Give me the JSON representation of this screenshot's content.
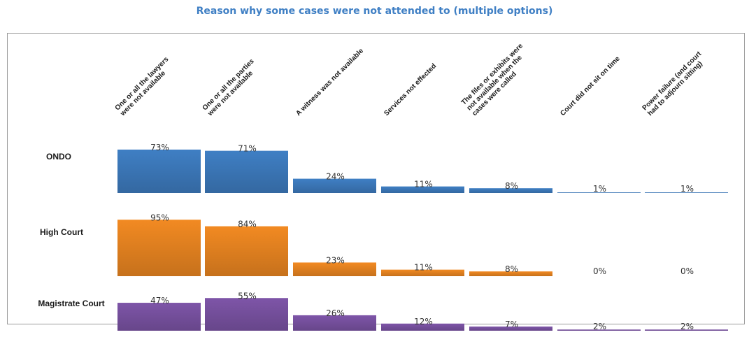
{
  "chart_data": {
    "type": "bar",
    "title": "Reason why some cases were not attended to (multiple options)",
    "categories": [
      "One or all the lawyers were not available",
      "One or all the parties were not available",
      "A witness was not available",
      "Services not effected",
      "The files or exhibits were not available when the cases were called",
      "Court did not sit on time",
      "Power failure (and court had to adjourn sitting)"
    ],
    "category_label_lines": [
      [
        "One or all the lawyers",
        "were not available"
      ],
      [
        "One or all the parties",
        "were not available"
      ],
      [
        "A witness was not available"
      ],
      [
        "Services not effected"
      ],
      [
        "The files or exhibits were",
        "not available when the",
        "cases were called"
      ],
      [
        "Court did not sit on time"
      ],
      [
        "Power failure (and court",
        "had to adjourn sitting)"
      ]
    ],
    "series": [
      {
        "name": "ONDO",
        "values": [
          73,
          71,
          24,
          11,
          8,
          1,
          1
        ],
        "labels": [
          "73%",
          "71%",
          "24%",
          "11%",
          "8%",
          "1%",
          "1%"
        ],
        "color": "#3f7fc4"
      },
      {
        "name": "High Court",
        "values": [
          95,
          84,
          23,
          11,
          8,
          0,
          0
        ],
        "labels": [
          "95%",
          "84%",
          "23%",
          "11%",
          "8%",
          "0%",
          "0%"
        ],
        "color": "#f28a22"
      },
      {
        "name": "Magistrate Court",
        "values": [
          47,
          55,
          26,
          12,
          7,
          2,
          2
        ],
        "labels": [
          "47%",
          "55%",
          "26%",
          "12%",
          "7%",
          "2%",
          "2%"
        ],
        "color": "#7e55a8"
      }
    ],
    "unit": "%",
    "grid": false,
    "legend": "none"
  }
}
